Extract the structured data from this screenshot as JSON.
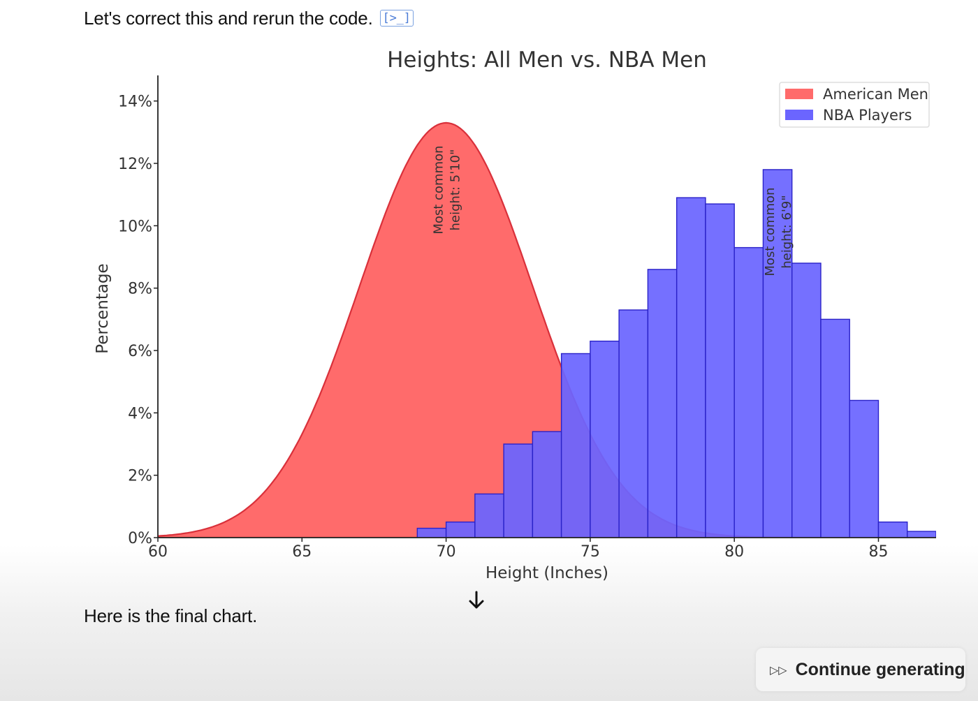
{
  "message_top": "Let's correct this and rerun the code.",
  "code_icon": "[>_]",
  "message_bottom": "Here is the final chart.",
  "continue_label": "Continue generating",
  "icons": {
    "code": "terminal-icon",
    "scroll": "arrow-down-icon",
    "continue": "fast-forward-icon"
  },
  "chart_data": {
    "type": "bar",
    "title": "Heights: All Men vs. NBA Men",
    "xlabel": "Height (Inches)",
    "ylabel": "Percentage",
    "xlim": [
      60,
      87
    ],
    "ylim": [
      0,
      15
    ],
    "xticks": [
      "60",
      "65",
      "70",
      "75",
      "80",
      "85"
    ],
    "yticks": [
      "0%",
      "2%",
      "4%",
      "6%",
      "8%",
      "10%",
      "12%",
      "14%"
    ],
    "legend_position": "top-right",
    "series": [
      {
        "name": "American Men",
        "kind": "area",
        "color": "#ff6b6b",
        "edge_color": "#d9303a",
        "mean": 70,
        "sd": 3,
        "peak_percent": 13.3
      },
      {
        "name": "NBA Players",
        "kind": "histogram",
        "color": "#6b65ff",
        "edge_color": "#2a22c8",
        "bin_start": 69,
        "bin_width": 1,
        "values": [
          0.3,
          0.5,
          1.4,
          3.0,
          3.4,
          5.9,
          6.3,
          7.3,
          8.6,
          10.9,
          10.7,
          9.3,
          11.8,
          8.8,
          7.0,
          4.4,
          0.5,
          0.2
        ]
      }
    ],
    "annotations": [
      {
        "text_lines": [
          "Most common",
          "height: 5'10\""
        ],
        "x": 70
      },
      {
        "text_lines": [
          "Most common",
          "height: 6'9\""
        ],
        "x": 81.5
      }
    ]
  }
}
